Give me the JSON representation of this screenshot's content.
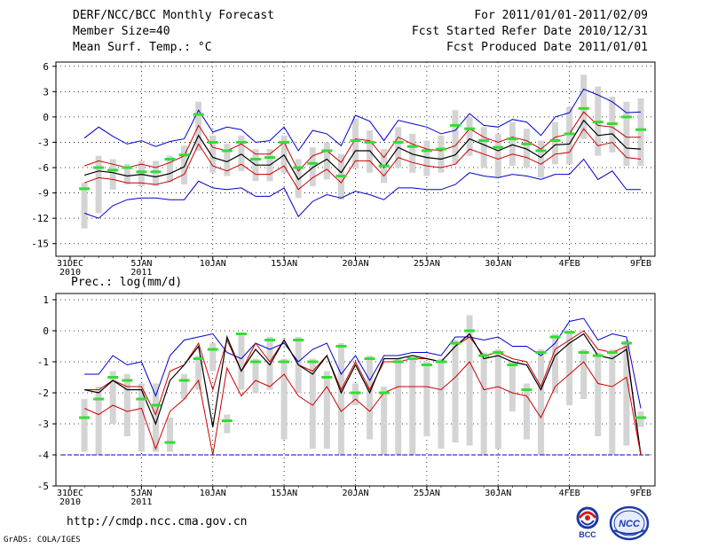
{
  "header": {
    "title": "DERF/NCC/BCC Monthly Forecast",
    "member_size": "Member Size=40",
    "variable": "Mean Surf. Temp.: °C",
    "period": "For 2011/01/01-2011/02/09",
    "started": "Fcst Started Refer Date 2010/12/31",
    "produced": "Fcst Produced Date 2011/01/01"
  },
  "footer": {
    "url": "http://cmdp.ncc.cma.gov.cn",
    "grads": "GrADS: COLA/IGES"
  },
  "logos": {
    "bcc": "BCC",
    "ncc": "NCC"
  },
  "colors": {
    "bar": "#d4d4d4",
    "max_line": "#0000cc",
    "min_line": "#0000cc",
    "upper_band": "#cc0000",
    "lower_band": "#cc0000",
    "mean": "#000000",
    "obs": "#33dd33",
    "threshold": "#0000cc"
  },
  "chart_data": [
    {
      "type": "line",
      "title": "Mean Surf. Temp.: °C",
      "xlabel": "",
      "ylabel": "°C",
      "ylim": [
        -16.5,
        6.5
      ],
      "yticks": [
        6,
        3,
        0,
        -3,
        -6,
        -9,
        -12,
        -15
      ],
      "x_ticks": [
        {
          "day": 0,
          "label": "31DEC",
          "sub": "2010"
        },
        {
          "day": 5,
          "label": "5JAN",
          "sub": "2011"
        },
        {
          "day": 10,
          "label": "10JAN",
          "sub": ""
        },
        {
          "day": 15,
          "label": "15JAN",
          "sub": ""
        },
        {
          "day": 20,
          "label": "20JAN",
          "sub": ""
        },
        {
          "day": 25,
          "label": "25JAN",
          "sub": ""
        },
        {
          "day": 30,
          "label": "30JAN",
          "sub": ""
        },
        {
          "day": 35,
          "label": "4FEB",
          "sub": ""
        },
        {
          "day": 40,
          "label": "9FEB",
          "sub": ""
        }
      ],
      "x": [
        1,
        2,
        3,
        4,
        5,
        6,
        7,
        8,
        9,
        10,
        11,
        12,
        13,
        14,
        15,
        16,
        17,
        18,
        19,
        20,
        21,
        22,
        23,
        24,
        25,
        26,
        27,
        28,
        29,
        30,
        31,
        32,
        33,
        34,
        35,
        36,
        37,
        38,
        39,
        40
      ],
      "series": [
        {
          "name": "ensemble max",
          "values": [
            -2.5,
            -1.2,
            -2.3,
            -3.2,
            -2.8,
            -3.5,
            -2.9,
            -2.6,
            0.8,
            -1.8,
            -1.2,
            -1.5,
            -3.0,
            -2.8,
            -1.2,
            -4.0,
            -1.6,
            -2.0,
            -3.4,
            0.2,
            -0.5,
            -2.8,
            -0.4,
            -0.8,
            -1.2,
            -2.0,
            -1.6,
            0.4,
            -1.0,
            -1.2,
            -0.3,
            -0.6,
            -2.2,
            0.0,
            0.5,
            3.3,
            2.6,
            1.8,
            0.5,
            0.6
          ]
        },
        {
          "name": "upper",
          "values": [
            -5.8,
            -5.2,
            -5.6,
            -6.0,
            -5.6,
            -6.0,
            -5.4,
            -4.6,
            -1.0,
            -3.6,
            -4.0,
            -3.2,
            -4.4,
            -4.4,
            -3.0,
            -6.4,
            -4.6,
            -4.0,
            -5.4,
            -2.6,
            -2.8,
            -4.8,
            -2.4,
            -3.2,
            -3.8,
            -4.0,
            -3.4,
            -1.4,
            -2.4,
            -3.0,
            -2.4,
            -2.8,
            -3.8,
            -2.4,
            -2.0,
            0.6,
            -1.0,
            -1.2,
            -2.4,
            -2.4
          ]
        },
        {
          "name": "ensemble mean",
          "values": [
            -6.9,
            -6.4,
            -6.6,
            -7.0,
            -6.8,
            -7.1,
            -6.7,
            -5.9,
            -2.2,
            -4.8,
            -5.3,
            -4.4,
            -5.7,
            -5.7,
            -4.5,
            -7.4,
            -6.0,
            -5.0,
            -6.6,
            -4.0,
            -4.0,
            -6.0,
            -3.6,
            -4.4,
            -4.8,
            -5.0,
            -4.5,
            -2.6,
            -3.3,
            -4.0,
            -3.3,
            -3.8,
            -4.8,
            -3.3,
            -3.2,
            -0.4,
            -2.2,
            -2.0,
            -3.7,
            -3.8
          ]
        },
        {
          "name": "lower",
          "values": [
            -7.8,
            -7.2,
            -7.4,
            -7.8,
            -7.8,
            -8.0,
            -7.6,
            -6.8,
            -3.2,
            -5.8,
            -6.4,
            -5.6,
            -6.8,
            -6.8,
            -5.8,
            -8.6,
            -7.2,
            -6.2,
            -7.8,
            -5.2,
            -5.2,
            -7.0,
            -4.8,
            -5.4,
            -5.8,
            -6.0,
            -5.6,
            -3.8,
            -4.4,
            -5.0,
            -4.4,
            -4.8,
            -5.6,
            -4.4,
            -4.2,
            -1.4,
            -3.4,
            -3.0,
            -4.8,
            -5.0
          ]
        },
        {
          "name": "ensemble min",
          "values": [
            -11.4,
            -12.0,
            -10.5,
            -9.8,
            -9.6,
            -9.6,
            -9.8,
            -9.8,
            -7.6,
            -8.4,
            -8.6,
            -8.4,
            -9.4,
            -9.4,
            -8.4,
            -11.8,
            -10.0,
            -9.2,
            -9.6,
            -8.8,
            -9.2,
            -9.8,
            -8.4,
            -8.4,
            -8.6,
            -8.6,
            -8.0,
            -6.6,
            -7.0,
            -7.2,
            -6.8,
            -7.0,
            -7.4,
            -6.8,
            -6.8,
            -5.0,
            -7.4,
            -6.4,
            -8.6,
            -8.6
          ]
        },
        {
          "name": "observed",
          "values": [
            -8.5,
            -6.0,
            -6.3,
            -6.0,
            -6.5,
            -6.5,
            -5.0,
            -4.5,
            0.3,
            -3.0,
            -4.0,
            -3.0,
            -5.0,
            -4.8,
            -3.0,
            -6.0,
            -5.5,
            -4.0,
            -7.0,
            -2.8,
            -3.0,
            -5.8,
            -3.0,
            -3.5,
            -4.0,
            -3.8,
            -1.0,
            -1.4,
            -2.8,
            -3.6,
            -2.6,
            -3.2,
            -4.0,
            -2.8,
            -2.0,
            1.0,
            -0.6,
            -0.8,
            0.0,
            -1.5
          ]
        }
      ],
      "bars": {
        "low": [
          -13.2,
          -11.4,
          -8.6,
          -8.0,
          -8.2,
          -8.2,
          -7.8,
          -8.0,
          -4.0,
          -6.6,
          -7.0,
          -6.4,
          -7.6,
          -7.6,
          -6.6,
          -9.6,
          -8.2,
          -7.4,
          -9.8,
          -6.0,
          -6.6,
          -7.8,
          -6.0,
          -6.6,
          -7.0,
          -6.6,
          -5.6,
          -4.6,
          -6.0,
          -7.2,
          -5.8,
          -6.0,
          -7.2,
          -5.6,
          -5.6,
          -2.6,
          -4.6,
          -4.2,
          -5.8,
          -5.8
        ],
        "high": [
          -7.8,
          -4.6,
          -5.0,
          -5.6,
          -5.2,
          -5.2,
          -4.6,
          -3.4,
          1.8,
          -2.2,
          -3.2,
          -2.2,
          -3.8,
          -3.8,
          -2.2,
          -5.0,
          -3.6,
          -3.0,
          -4.4,
          -0.2,
          -1.6,
          -3.8,
          -1.2,
          -2.0,
          -2.8,
          -2.2,
          0.8,
          0.0,
          -1.2,
          -2.0,
          -0.6,
          -1.4,
          -2.8,
          -0.6,
          1.2,
          5.0,
          3.6,
          2.4,
          1.8,
          2.2
        ]
      }
    },
    {
      "type": "line",
      "title": "Prec.: log(mm/d)",
      "xlabel": "",
      "ylabel": "log(mm/d)",
      "ylim": [
        -5,
        1.2
      ],
      "yticks": [
        1,
        0,
        -1,
        -2,
        -3,
        -4,
        -5
      ],
      "threshold": -4,
      "x_ticks": [
        {
          "day": 0,
          "label": "31DEC",
          "sub": "2010"
        },
        {
          "day": 5,
          "label": "5JAN",
          "sub": "2011"
        },
        {
          "day": 10,
          "label": "10JAN",
          "sub": ""
        },
        {
          "day": 15,
          "label": "15JAN",
          "sub": ""
        },
        {
          "day": 20,
          "label": "20JAN",
          "sub": ""
        },
        {
          "day": 25,
          "label": "25JAN",
          "sub": ""
        },
        {
          "day": 30,
          "label": "30JAN",
          "sub": ""
        },
        {
          "day": 35,
          "label": "4FEB",
          "sub": ""
        },
        {
          "day": 40,
          "label": "9FEB",
          "sub": ""
        }
      ],
      "x": [
        1,
        2,
        3,
        4,
        5,
        6,
        7,
        8,
        9,
        10,
        11,
        12,
        13,
        14,
        15,
        16,
        17,
        18,
        19,
        20,
        21,
        22,
        23,
        24,
        25,
        26,
        27,
        28,
        29,
        30,
        31,
        32,
        33,
        34,
        35,
        36,
        37,
        38,
        39,
        40
      ],
      "series": [
        {
          "name": "ensemble max",
          "values": [
            -1.4,
            -1.4,
            -0.8,
            -1.1,
            -1.0,
            -2.1,
            -0.8,
            -0.3,
            -0.2,
            -0.1,
            -0.7,
            -0.9,
            -0.4,
            -0.6,
            -0.4,
            -1.0,
            -0.6,
            -0.4,
            -1.4,
            -0.8,
            -1.6,
            -0.8,
            -0.8,
            -0.7,
            -0.7,
            -0.8,
            -0.2,
            -0.2,
            -0.3,
            -0.2,
            -0.5,
            -0.5,
            -0.8,
            -0.4,
            0.3,
            0.4,
            -0.3,
            -0.1,
            -0.2,
            -2.5
          ]
        },
        {
          "name": "upper",
          "values": [
            -1.9,
            -1.9,
            -1.6,
            -1.8,
            -1.8,
            -2.7,
            -1.3,
            -1.1,
            -0.4,
            -1.9,
            -0.3,
            -1.3,
            -0.4,
            -1.0,
            -0.3,
            -1.1,
            -1.3,
            -0.8,
            -1.9,
            -1.0,
            -1.9,
            -1.0,
            -1.0,
            -0.9,
            -0.9,
            -1.0,
            -0.5,
            -0.2,
            -0.8,
            -0.7,
            -0.9,
            -1.0,
            -1.8,
            -0.6,
            -0.3,
            0.0,
            -0.6,
            -0.7,
            -0.5,
            -4.0
          ]
        },
        {
          "name": "ensemble mean",
          "values": [
            -1.9,
            -2.0,
            -1.6,
            -1.9,
            -1.9,
            -3.0,
            -1.6,
            -1.1,
            -0.5,
            -3.1,
            -0.2,
            -1.3,
            -0.6,
            -1.1,
            -0.3,
            -1.1,
            -1.4,
            -0.8,
            -2.0,
            -1.1,
            -2.0,
            -0.9,
            -0.9,
            -0.8,
            -0.9,
            -1.0,
            -0.5,
            -0.1,
            -0.9,
            -0.8,
            -1.0,
            -1.1,
            -1.9,
            -0.8,
            -0.4,
            -0.1,
            -0.8,
            -0.9,
            -0.6,
            -4.0
          ]
        },
        {
          "name": "lower",
          "values": [
            -2.5,
            -2.7,
            -2.4,
            -2.6,
            -2.5,
            -3.8,
            -2.6,
            -2.2,
            -1.6,
            -4.0,
            -1.2,
            -2.1,
            -1.6,
            -1.8,
            -1.4,
            -2.1,
            -2.4,
            -1.8,
            -2.6,
            -2.2,
            -2.6,
            -2.0,
            -1.8,
            -1.8,
            -1.8,
            -1.9,
            -1.5,
            -1.0,
            -1.9,
            -1.8,
            -2.0,
            -2.1,
            -2.8,
            -1.8,
            -1.4,
            -1.0,
            -1.7,
            -1.8,
            -1.5,
            -4.0
          ]
        },
        {
          "name": "ensemble min",
          "values": [
            -4,
            -4,
            -4,
            -4,
            -4,
            -4,
            -4,
            -4,
            -4,
            -4,
            -4,
            -4,
            -4,
            -4,
            -4,
            -4,
            -4,
            -4,
            -4,
            -4,
            -4,
            -4,
            -4,
            -4,
            -4,
            -4,
            -4,
            -4,
            -4,
            -4,
            -4,
            -4,
            -4,
            -4,
            -4,
            -4,
            -4,
            -4,
            -4,
            -4
          ]
        },
        {
          "name": "observed",
          "values": [
            -2.8,
            -2.2,
            -1.5,
            -1.6,
            -2.2,
            -2.4,
            -3.6,
            -1.6,
            -0.9,
            -0.6,
            -2.9,
            -0.1,
            -1.0,
            -0.3,
            -1.0,
            -0.3,
            -1.0,
            -1.5,
            -0.5,
            -2.0,
            -0.9,
            -2.0,
            -1.0,
            -0.9,
            -1.1,
            -1.0,
            -0.4,
            0.0,
            -0.8,
            -0.7,
            -1.1,
            -1.9,
            -0.7,
            -0.2,
            -0.05,
            -0.7,
            -0.8,
            -0.7,
            -0.4,
            -2.8
          ]
        }
      ],
      "bars": {
        "low": [
          -3.9,
          -4.0,
          -3.0,
          -3.4,
          -3.9,
          -3.9,
          -3.9,
          -2.2,
          -1.9,
          -1.3,
          -3.3,
          -1.9,
          -2.0,
          -1.9,
          -3.5,
          -2.0,
          -3.8,
          -3.8,
          -4.0,
          -2.4,
          -3.5,
          -4.0,
          -4.0,
          -4.0,
          -3.4,
          -3.8,
          -3.6,
          -3.7,
          -4.0,
          -3.8,
          -2.6,
          -3.5,
          -4.0,
          -2.0,
          -2.4,
          -2.2,
          -3.4,
          -4.0,
          -3.7,
          -3.1
        ],
        "high": [
          -2.2,
          -1.8,
          -1.3,
          -1.4,
          -1.7,
          -1.7,
          -2.8,
          -1.4,
          -0.8,
          -0.4,
          -2.7,
          -0.1,
          -0.9,
          -0.2,
          -0.9,
          -0.2,
          -0.9,
          -1.3,
          -0.4,
          -1.7,
          -0.8,
          -1.8,
          -0.9,
          -0.9,
          -1.0,
          -0.9,
          -0.3,
          0.5,
          -0.7,
          -0.6,
          -1.0,
          -1.7,
          -0.6,
          -0.1,
          0.0,
          -0.6,
          -0.7,
          -0.6,
          -0.3,
          -2.6
        ]
      }
    }
  ]
}
